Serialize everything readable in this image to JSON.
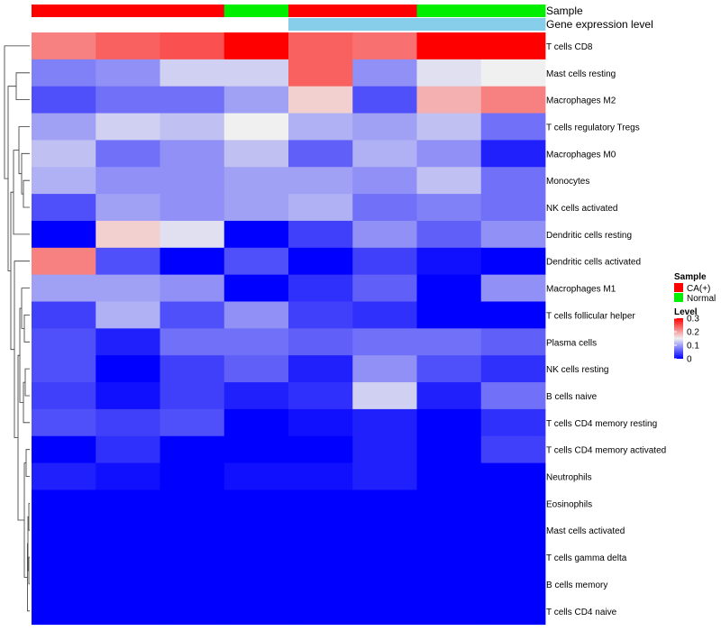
{
  "chart_data": {
    "type": "heatmap",
    "annotation_rows": [
      {
        "name": "Sample",
        "values": [
          "CA(+)",
          "CA(+)",
          "CA(+)",
          "Normal",
          "CA(+)",
          "CA(+)",
          "Normal",
          "Normal"
        ]
      },
      {
        "name": "Gene expression level",
        "values": [
          "low",
          "low",
          "low",
          "low",
          "high",
          "high",
          "high",
          "high"
        ]
      }
    ],
    "rows": [
      "T cells CD8",
      "Mast cells resting",
      "Macrophages M2",
      "T cells regulatory  Tregs",
      "Macrophages M0",
      "Monocytes",
      "NK cells activated",
      "Dendritic cells resting",
      "Dendritic cells activated",
      "Macrophages M1",
      "T cells follicular helper",
      "Plasma cells",
      "NK cells resting",
      "B cells naive",
      "T cells CD4 memory resting",
      "T cells CD4 memory activated",
      "Neutrophils",
      "Eosinophils",
      "Mast cells activated",
      "T cells gamma delta",
      "B cells memory",
      "T cells CD4 naive"
    ],
    "values": [
      [
        0.22,
        0.24,
        0.25,
        0.3,
        0.24,
        0.23,
        0.3,
        0.3
      ],
      [
        0.08,
        0.09,
        0.13,
        0.13,
        0.24,
        0.09,
        0.14,
        0.15
      ],
      [
        0.05,
        0.07,
        0.07,
        0.1,
        0.17,
        0.05,
        0.19,
        0.22
      ],
      [
        0.1,
        0.13,
        0.12,
        0.15,
        0.11,
        0.1,
        0.12,
        0.07
      ],
      [
        0.12,
        0.07,
        0.09,
        0.12,
        0.06,
        0.11,
        0.09,
        0.02
      ],
      [
        0.11,
        0.09,
        0.09,
        0.1,
        0.1,
        0.09,
        0.12,
        0.07
      ],
      [
        0.05,
        0.1,
        0.09,
        0.1,
        0.11,
        0.07,
        0.08,
        0.07
      ],
      [
        0.0,
        0.17,
        0.14,
        0.0,
        0.04,
        0.09,
        0.06,
        0.09
      ],
      [
        0.22,
        0.05,
        0.0,
        0.05,
        0.0,
        0.04,
        0.01,
        0.0
      ],
      [
        0.1,
        0.1,
        0.09,
        0.0,
        0.03,
        0.06,
        0.0,
        0.09
      ],
      [
        0.04,
        0.11,
        0.05,
        0.09,
        0.04,
        0.03,
        0.0,
        0.0
      ],
      [
        0.05,
        0.02,
        0.07,
        0.07,
        0.06,
        0.07,
        0.07,
        0.06
      ],
      [
        0.05,
        0.0,
        0.04,
        0.06,
        0.02,
        0.09,
        0.05,
        0.03
      ],
      [
        0.04,
        0.01,
        0.04,
        0.02,
        0.03,
        0.13,
        0.02,
        0.07
      ],
      [
        0.05,
        0.04,
        0.05,
        0.0,
        0.01,
        0.02,
        0.0,
        0.03
      ],
      [
        0.0,
        0.03,
        0.0,
        0.0,
        0.0,
        0.02,
        0.0,
        0.04
      ],
      [
        0.02,
        0.01,
        0.0,
        0.01,
        0.01,
        0.02,
        0.0,
        0.0
      ],
      [
        0.0,
        0.0,
        0.0,
        0.0,
        0.0,
        0.0,
        0.0,
        0.0
      ],
      [
        0.0,
        0.0,
        0.0,
        0.0,
        0.0,
        0.0,
        0.0,
        0.0
      ],
      [
        0.0,
        0.0,
        0.0,
        0.0,
        0.0,
        0.0,
        0.0,
        0.0
      ],
      [
        0.0,
        0.0,
        0.0,
        0.0,
        0.0,
        0.0,
        0.0,
        0.0
      ],
      [
        0.0,
        0.0,
        0.0,
        0.0,
        0.0,
        0.0,
        0.0,
        0.0
      ]
    ],
    "color_scale": {
      "min": 0,
      "mid": 0.15,
      "max": 0.3,
      "low_color": "#0000ff",
      "mid_color": "#f0f0f0",
      "high_color": "#ff0000"
    },
    "dendrogram": "row clustering tree shown on the left",
    "legend": {
      "position": "right",
      "sample": {
        "title": "Sample",
        "items": [
          {
            "label": "CA(+)",
            "color": "#ff0000"
          },
          {
            "label": "Normal",
            "color": "#00ee00"
          }
        ]
      },
      "expression": {
        "colors": {
          "low": "#ffffff",
          "high": "#87ceeb"
        }
      },
      "level": {
        "title": "Level",
        "ticks": [
          {
            "value": 0.3,
            "label": "0.3"
          },
          {
            "value": 0.2,
            "label": "0.2"
          },
          {
            "value": 0.1,
            "label": "0.1"
          },
          {
            "value": 0,
            "label": "0"
          }
        ]
      }
    }
  }
}
